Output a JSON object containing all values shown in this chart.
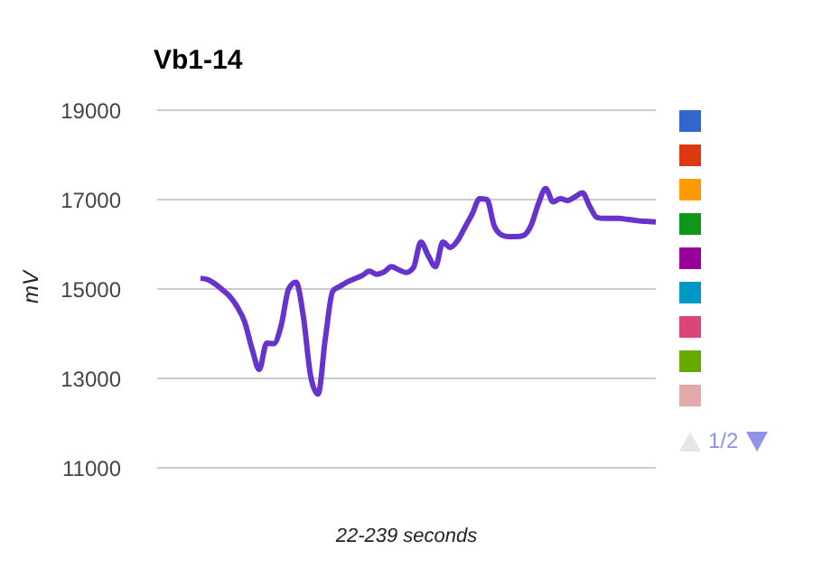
{
  "chart_data": {
    "type": "line",
    "title": "Vb1-14",
    "xlabel": "22-239 seconds",
    "ylabel": "mV",
    "categories": [
      null,
      null,
      null,
      null,
      null,
      null,
      null,
      null,
      null,
      null,
      null,
      null,
      null,
      null,
      null,
      null,
      null,
      null,
      null,
      null,
      null,
      null,
      null,
      null,
      null,
      null,
      null,
      null,
      null,
      null,
      null,
      null,
      null,
      null,
      null,
      null,
      null,
      null,
      null,
      null,
      null,
      null,
      null,
      null,
      null,
      null,
      null,
      null,
      null,
      null,
      null,
      null,
      null,
      null,
      null,
      null,
      null,
      null,
      null,
      null,
      null,
      null,
      null
    ],
    "series": [
      {
        "color": "#3366cc",
        "values": [
          null,
          null,
          null,
          null,
          null,
          null,
          null,
          null,
          null,
          null,
          null,
          null,
          null,
          null,
          null,
          null,
          null,
          null,
          null,
          null,
          null,
          null,
          null,
          null,
          null,
          null,
          null,
          null,
          null,
          null,
          null,
          null,
          null,
          null,
          null,
          null,
          null,
          null,
          null,
          null,
          null,
          null,
          null,
          null,
          null,
          null,
          null,
          null,
          null,
          null,
          null,
          null,
          null,
          null,
          null,
          null,
          null,
          null,
          null,
          null,
          null,
          null,
          null
        ]
      },
      {
        "color": "#dc3912",
        "values": [
          null,
          null,
          null,
          null,
          null,
          null,
          null,
          null,
          null,
          null,
          null,
          null,
          null,
          null,
          null,
          null,
          null,
          null,
          null,
          null,
          null,
          null,
          null,
          null,
          null,
          null,
          null,
          null,
          null,
          null,
          null,
          null,
          null,
          null,
          null,
          null,
          null,
          null,
          null,
          null,
          null,
          null,
          null,
          null,
          null,
          null,
          null,
          null,
          null,
          null,
          null,
          null,
          null,
          null,
          null,
          null,
          null,
          null,
          null,
          null,
          null,
          null,
          null
        ]
      },
      {
        "color": "#ff9900",
        "values": [
          null,
          null,
          null,
          null,
          null,
          null,
          null,
          null,
          null,
          null,
          null,
          null,
          null,
          null,
          null,
          null,
          null,
          null,
          null,
          null,
          null,
          null,
          null,
          null,
          null,
          null,
          null,
          null,
          null,
          null,
          null,
          null,
          null,
          null,
          null,
          null,
          null,
          null,
          null,
          null,
          null,
          null,
          null,
          null,
          null,
          null,
          null,
          null,
          null,
          null,
          null,
          null,
          null,
          null,
          null,
          null,
          null,
          null,
          null,
          null,
          null,
          null,
          null
        ]
      },
      {
        "color": "#109618",
        "values": [
          null,
          null,
          null,
          null,
          null,
          null,
          null,
          null,
          null,
          null,
          null,
          null,
          null,
          null,
          null,
          null,
          null,
          null,
          null,
          null,
          null,
          null,
          null,
          null,
          null,
          null,
          null,
          null,
          null,
          null,
          null,
          null,
          null,
          null,
          null,
          null,
          null,
          null,
          null,
          null,
          null,
          null,
          null,
          null,
          null,
          null,
          null,
          null,
          null,
          null,
          null,
          null,
          null,
          null,
          null,
          null,
          null,
          null,
          null,
          null,
          null,
          null,
          null
        ]
      },
      {
        "color": "#990099",
        "values": [
          null,
          null,
          null,
          null,
          null,
          null,
          null,
          null,
          null,
          null,
          null,
          null,
          null,
          null,
          null,
          null,
          null,
          null,
          null,
          null,
          null,
          null,
          null,
          null,
          null,
          null,
          null,
          null,
          null,
          null,
          null,
          null,
          null,
          null,
          null,
          null,
          null,
          null,
          null,
          null,
          null,
          null,
          null,
          null,
          null,
          null,
          null,
          null,
          null,
          null,
          null,
          null,
          null,
          null,
          null,
          null,
          null,
          null,
          null,
          null,
          null,
          null,
          null
        ]
      },
      {
        "color": "#0099c6",
        "values": [
          null,
          null,
          null,
          null,
          null,
          null,
          null,
          null,
          null,
          null,
          null,
          null,
          null,
          null,
          null,
          null,
          null,
          null,
          null,
          null,
          null,
          null,
          null,
          null,
          null,
          null,
          null,
          null,
          null,
          null,
          null,
          null,
          null,
          null,
          null,
          null,
          null,
          null,
          null,
          null,
          null,
          null,
          null,
          null,
          null,
          null,
          null,
          null,
          null,
          null,
          null,
          null,
          null,
          null,
          null,
          null,
          null,
          null,
          null,
          null,
          null,
          null,
          null
        ]
      },
      {
        "color": "#dd4477",
        "values": [
          null,
          null,
          null,
          null,
          null,
          null,
          null,
          null,
          null,
          null,
          null,
          null,
          null,
          null,
          null,
          null,
          null,
          null,
          null,
          null,
          null,
          null,
          null,
          null,
          null,
          null,
          null,
          null,
          null,
          null,
          null,
          null,
          null,
          null,
          null,
          null,
          null,
          null,
          null,
          null,
          null,
          null,
          null,
          null,
          null,
          null,
          null,
          null,
          null,
          null,
          null,
          null,
          null,
          null,
          null,
          null,
          null,
          null,
          null,
          null,
          null,
          null,
          null
        ]
      },
      {
        "color": "#66aa00",
        "values": [
          null,
          null,
          null,
          null,
          null,
          null,
          null,
          null,
          null,
          null,
          null,
          null,
          null,
          null,
          null,
          null,
          null,
          null,
          null,
          null,
          null,
          null,
          null,
          null,
          null,
          null,
          null,
          null,
          null,
          null,
          null,
          null,
          null,
          null,
          null,
          null,
          null,
          null,
          null,
          null,
          null,
          null,
          null,
          null,
          null,
          null,
          null,
          null,
          null,
          null,
          null,
          null,
          null,
          null,
          null,
          null,
          null,
          null,
          null,
          null,
          null,
          null,
          null
        ]
      },
      {
        "color": "#e0aaaa",
        "values": [
          null,
          null,
          null,
          null,
          null,
          null,
          null,
          null,
          null,
          null,
          null,
          null,
          null,
          null,
          null,
          null,
          null,
          null,
          null,
          null,
          null,
          null,
          null,
          null,
          null,
          null,
          null,
          null,
          null,
          null,
          null,
          null,
          null,
          null,
          null,
          null,
          null,
          null,
          null,
          null,
          null,
          null,
          null,
          null,
          null,
          null,
          null,
          null,
          null,
          null,
          null,
          null,
          null,
          null,
          null,
          null,
          null,
          null,
          null,
          null,
          null,
          null,
          null
        ]
      },
      {
        "color": "#6633cc",
        "values": [
          15240,
          15210,
          15110,
          14980,
          14830,
          14600,
          14270,
          13670,
          13200,
          13790,
          13780,
          14200,
          15000,
          15150,
          14390,
          13050,
          12650,
          13900,
          14950,
          15060,
          15160,
          15230,
          15300,
          15400,
          15330,
          15380,
          15500,
          15430,
          15370,
          15480,
          16050,
          15750,
          15500,
          16050,
          15930,
          16080,
          16380,
          16680,
          17020,
          17000,
          16410,
          16210,
          16170,
          16170,
          16200,
          16420,
          16900,
          17250,
          16950,
          17020,
          16980,
          17060,
          17150,
          16850,
          16600,
          16580,
          16580,
          16580,
          16560,
          16540,
          16520,
          16510,
          16500
        ]
      }
    ],
    "ylim": [
      11000,
      19000
    ],
    "yticks": [
      11000,
      13000,
      15000,
      17000,
      19000
    ],
    "grid": "y",
    "tick_labels": "y",
    "annotations": [
      "1/2"
    ]
  }
}
